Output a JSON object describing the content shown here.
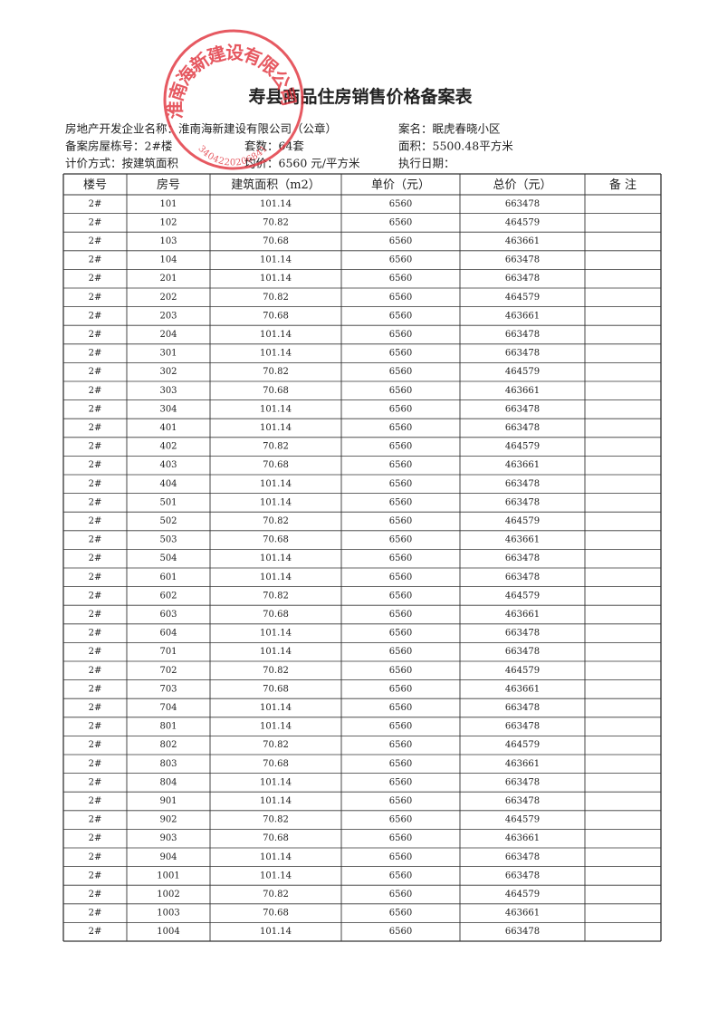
{
  "header": {
    "title": "寿县商品住房销售价格备案表",
    "developer": "房地产开发企业名称：淮南海新建设有限公司（公章）",
    "project": "案名：眠虎春晓小区",
    "building": "备案房屋栋号：2#楼",
    "units": "套数：64套",
    "area": "面积：5500.48平方米",
    "pricing": "计价方式：按建筑面积",
    "avg_price": "均价：6560 元/平方米",
    "exec_date": "执行日期："
  },
  "stamp": {
    "name": "淮南海新建设有限公司",
    "number": "3404220206841"
  },
  "table": {
    "columns": [
      "楼号",
      "房号",
      "建筑面积（m2）",
      "单价（元）",
      "总价（元）",
      "备 注"
    ],
    "rows": [
      [
        "2#",
        "101",
        "101.14",
        "6560",
        "663478"
      ],
      [
        "2#",
        "102",
        "70.82",
        "6560",
        "464579"
      ],
      [
        "2#",
        "103",
        "70.68",
        "6560",
        "463661"
      ],
      [
        "2#",
        "104",
        "101.14",
        "6560",
        "663478"
      ],
      [
        "2#",
        "201",
        "101.14",
        "6560",
        "663478"
      ],
      [
        "2#",
        "202",
        "70.82",
        "6560",
        "464579"
      ],
      [
        "2#",
        "203",
        "70.68",
        "6560",
        "463661"
      ],
      [
        "2#",
        "204",
        "101.14",
        "6560",
        "663478"
      ],
      [
        "2#",
        "301",
        "101.14",
        "6560",
        "663478"
      ],
      [
        "2#",
        "302",
        "70.82",
        "6560",
        "464579"
      ],
      [
        "2#",
        "303",
        "70.68",
        "6560",
        "463661"
      ],
      [
        "2#",
        "304",
        "101.14",
        "6560",
        "663478"
      ],
      [
        "2#",
        "401",
        "101.14",
        "6560",
        "663478"
      ],
      [
        "2#",
        "402",
        "70.82",
        "6560",
        "464579"
      ],
      [
        "2#",
        "403",
        "70.68",
        "6560",
        "463661"
      ],
      [
        "2#",
        "404",
        "101.14",
        "6560",
        "663478"
      ],
      [
        "2#",
        "501",
        "101.14",
        "6560",
        "663478"
      ],
      [
        "2#",
        "502",
        "70.82",
        "6560",
        "464579"
      ],
      [
        "2#",
        "503",
        "70.68",
        "6560",
        "463661"
      ],
      [
        "2#",
        "504",
        "101.14",
        "6560",
        "663478"
      ],
      [
        "2#",
        "601",
        "101.14",
        "6560",
        "663478"
      ],
      [
        "2#",
        "602",
        "70.82",
        "6560",
        "464579"
      ],
      [
        "2#",
        "603",
        "70.68",
        "6560",
        "463661"
      ],
      [
        "2#",
        "604",
        "101.14",
        "6560",
        "663478"
      ],
      [
        "2#",
        "701",
        "101.14",
        "6560",
        "663478"
      ],
      [
        "2#",
        "702",
        "70.82",
        "6560",
        "464579"
      ],
      [
        "2#",
        "703",
        "70.68",
        "6560",
        "463661"
      ],
      [
        "2#",
        "704",
        "101.14",
        "6560",
        "663478"
      ],
      [
        "2#",
        "801",
        "101.14",
        "6560",
        "663478"
      ],
      [
        "2#",
        "802",
        "70.82",
        "6560",
        "464579"
      ],
      [
        "2#",
        "803",
        "70.68",
        "6560",
        "463661"
      ],
      [
        "2#",
        "804",
        "101.14",
        "6560",
        "663478"
      ],
      [
        "2#",
        "901",
        "101.14",
        "6560",
        "663478"
      ],
      [
        "2#",
        "902",
        "70.82",
        "6560",
        "464579"
      ],
      [
        "2#",
        "903",
        "70.68",
        "6560",
        "463661"
      ],
      [
        "2#",
        "904",
        "101.14",
        "6560",
        "663478"
      ],
      [
        "2#",
        "1001",
        "101.14",
        "6560",
        "663478"
      ],
      [
        "2#",
        "1002",
        "70.82",
        "6560",
        "464579"
      ],
      [
        "2#",
        "1003",
        "70.68",
        "6560",
        "463661"
      ],
      [
        "2#",
        "1004",
        "101.14",
        "6560",
        "663478"
      ]
    ]
  }
}
